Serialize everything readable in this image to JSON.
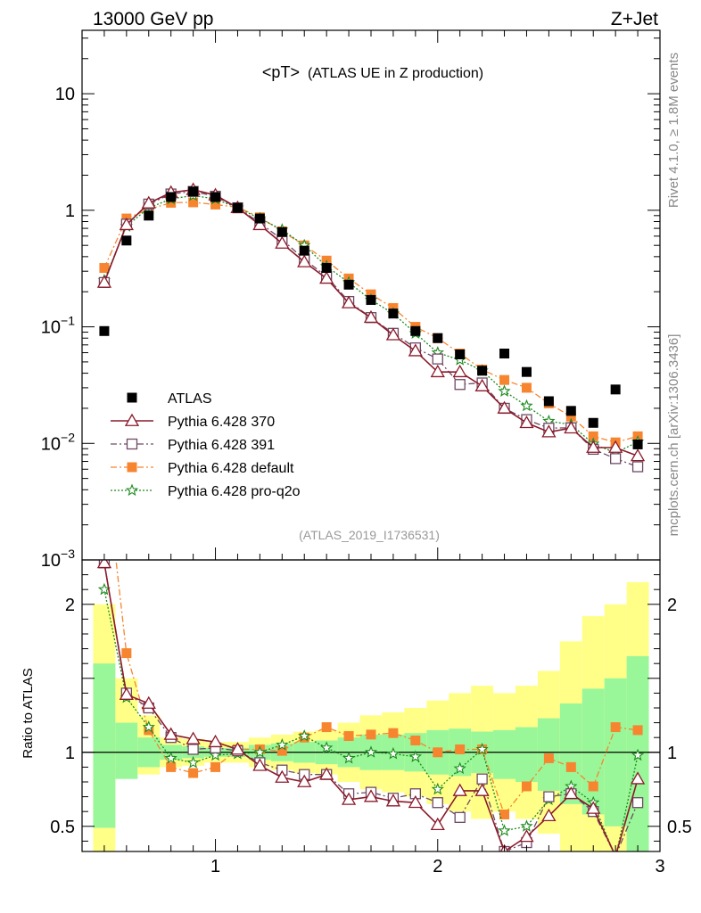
{
  "header": {
    "energy_label": "13000 GeV pp",
    "process_label": "Z+Jet"
  },
  "side_notes": {
    "rivet": "Rivet 4.1.0, ≥ 1.8M events",
    "mcplots": "mcplots.cern.ch [arXiv:1306.3436]"
  },
  "chart_data": {
    "type": "line",
    "title": "<pT>",
    "subtitle": "(ATLAS UE in Z production)",
    "analysis_id": "(ATLAS_2019_I1736531)",
    "main_panel": {
      "yscale": "log",
      "ylim": [
        0.001,
        35
      ],
      "y_ticks": [
        {
          "value": 10,
          "label": "10"
        },
        {
          "value": 1,
          "label": "1"
        },
        {
          "value": 0.1,
          "label": "10",
          "exp": "−1"
        },
        {
          "value": 0.01,
          "label": "10",
          "exp": "−2"
        },
        {
          "value": 0.001,
          "label": "10",
          "exp": "−3"
        }
      ]
    },
    "ratio_panel": {
      "ylabel": "Ratio to ATLAS",
      "ylim": [
        0.33,
        2.3
      ],
      "y_ticks": [
        {
          "value": 2,
          "label": "2"
        },
        {
          "value": 1,
          "label": "1"
        },
        {
          "value": 0.5,
          "label": "0.5"
        }
      ]
    },
    "xlim": [
      0.4,
      3.0
    ],
    "x_ticks": [
      {
        "value": 1,
        "label": "1"
      },
      {
        "value": 2,
        "label": "2"
      },
      {
        "value": 3,
        "label": "3"
      }
    ],
    "x": [
      0.5,
      0.6,
      0.7,
      0.8,
      0.9,
      1.0,
      1.1,
      1.2,
      1.3,
      1.4,
      1.5,
      1.6,
      1.7,
      1.8,
      1.9,
      2.0,
      2.1,
      2.2,
      2.3,
      2.4,
      2.5,
      2.6,
      2.7,
      2.8,
      2.9
    ],
    "legend_position": "lower-left",
    "series": [
      {
        "name": "ATLAS",
        "color": "#000000",
        "marker": "square-filled",
        "line": "none",
        "values": [
          0.092,
          0.55,
          0.9,
          1.3,
          1.45,
          1.3,
          1.05,
          0.85,
          0.65,
          0.45,
          0.32,
          0.23,
          0.17,
          0.13,
          0.092,
          0.08,
          0.058,
          0.042,
          0.059,
          0.041,
          0.023,
          0.019,
          0.015,
          0.029,
          0.0098
        ]
      },
      {
        "name": "Pythia 6.428 370",
        "color": "#8b1a2b",
        "marker": "triangle-open",
        "line": "solid",
        "values": [
          0.24,
          0.75,
          1.15,
          1.42,
          1.5,
          1.35,
          1.05,
          0.75,
          0.52,
          0.36,
          0.26,
          0.16,
          0.12,
          0.085,
          0.062,
          0.041,
          0.041,
          0.031,
          0.02,
          0.015,
          0.0125,
          0.0135,
          0.0092,
          0.0092,
          0.0078
        ]
      },
      {
        "name": "Pythia 6.428 391",
        "color": "#6e4a63",
        "marker": "square-open",
        "line": "dashdot",
        "values": [
          0.24,
          0.76,
          1.13,
          1.38,
          1.45,
          1.32,
          1.05,
          0.78,
          0.56,
          0.38,
          0.27,
          0.165,
          0.12,
          0.088,
          0.066,
          0.053,
          0.032,
          0.033,
          0.02,
          0.016,
          0.0135,
          0.0136,
          0.0089,
          0.0074,
          0.0063
        ]
      },
      {
        "name": "Pythia 6.428 default",
        "color": "#f7852f",
        "marker": "square-filled",
        "line": "dashdot",
        "values": [
          0.32,
          0.85,
          1.02,
          1.16,
          1.17,
          1.12,
          1.06,
          0.87,
          0.66,
          0.5,
          0.37,
          0.26,
          0.19,
          0.145,
          0.1,
          0.08,
          0.059,
          0.043,
          0.035,
          0.03,
          0.022,
          0.017,
          0.0115,
          0.0102,
          0.0115
        ]
      },
      {
        "name": "Pythia 6.428 pro-q2o",
        "color": "#1d8a1d",
        "marker": "star-open",
        "line": "dotted",
        "values": [
          0.25,
          0.73,
          1.05,
          1.25,
          1.34,
          1.25,
          1.05,
          0.85,
          0.68,
          0.5,
          0.33,
          0.24,
          0.17,
          0.13,
          0.088,
          0.06,
          0.052,
          0.042,
          0.028,
          0.021,
          0.0155,
          0.0145,
          0.0099,
          0.0083,
          0.0103
        ]
      }
    ],
    "ratio_series": [
      {
        "name": "Pythia 6.428 370",
        "values": [
          2.28,
          1.39,
          1.33,
          1.12,
          1.09,
          1.07,
          1.02,
          0.91,
          0.83,
          0.8,
          0.85,
          0.68,
          0.7,
          0.67,
          0.66,
          0.51,
          0.74,
          0.74,
          0.33,
          0.43,
          0.57,
          0.72,
          0.62,
          0.3,
          0.82
        ]
      },
      {
        "name": "Pythia 6.428 391",
        "values": [
          2.28,
          1.4,
          1.3,
          1.1,
          1.02,
          1.03,
          1.01,
          0.93,
          0.88,
          0.85,
          0.85,
          0.72,
          0.73,
          0.69,
          0.72,
          0.66,
          0.56,
          0.82,
          0.33,
          0.39,
          0.7,
          0.72,
          0.6,
          0.3,
          0.66
        ]
      },
      {
        "name": "Pythia 6.428 default",
        "values": [
          3.0,
          1.67,
          1.15,
          0.9,
          0.86,
          0.9,
          1.02,
          1.02,
          1.01,
          1.1,
          1.17,
          1.11,
          1.12,
          1.13,
          1.08,
          1.0,
          1.02,
          1.02,
          0.58,
          0.77,
          0.96,
          0.9,
          0.77,
          1.17,
          1.15
        ]
      },
      {
        "name": "Pythia 6.428 pro-q2o",
        "values": [
          2.1,
          1.37,
          1.17,
          0.96,
          0.93,
          0.98,
          0.99,
          1.0,
          1.05,
          1.11,
          1.03,
          0.96,
          1.0,
          0.99,
          0.97,
          0.75,
          0.89,
          1.02,
          0.47,
          0.5,
          0.68,
          0.77,
          0.66,
          0.29,
          0.98
        ]
      }
    ],
    "ratio_bands": {
      "stat_hi": [
        1.6,
        1.2,
        1.1,
        1.05,
        1.04,
        1.03,
        1.03,
        1.05,
        1.06,
        1.07,
        1.08,
        1.1,
        1.12,
        1.12,
        1.13,
        1.15,
        1.16,
        1.14,
        1.15,
        1.17,
        1.23,
        1.33,
        1.43,
        1.5,
        1.65
      ],
      "stat_lo": [
        0.49,
        0.82,
        0.9,
        0.95,
        0.96,
        0.97,
        0.97,
        0.95,
        0.94,
        0.93,
        0.92,
        0.9,
        0.88,
        0.88,
        0.87,
        0.85,
        0.84,
        0.86,
        0.82,
        0.8,
        0.74,
        0.65,
        0.58,
        0.5,
        0.33
      ],
      "syst_hi": [
        2.0,
        1.5,
        1.25,
        1.1,
        1.09,
        1.07,
        1.07,
        1.1,
        1.12,
        1.14,
        1.15,
        1.2,
        1.25,
        1.27,
        1.3,
        1.35,
        1.4,
        1.45,
        1.4,
        1.45,
        1.55,
        1.75,
        1.92,
        2.0,
        2.15
      ],
      "syst_lo": [
        0.33,
        0.85,
        0.85,
        0.9,
        0.91,
        0.93,
        0.93,
        0.9,
        0.88,
        0.86,
        0.85,
        0.8,
        0.75,
        0.73,
        0.7,
        0.65,
        0.6,
        0.55,
        0.6,
        0.55,
        0.45,
        0.33,
        0.33,
        0.33,
        0.33
      ]
    },
    "band_colors": {
      "inner": "#99f799",
      "outer": "#ffff88"
    }
  }
}
